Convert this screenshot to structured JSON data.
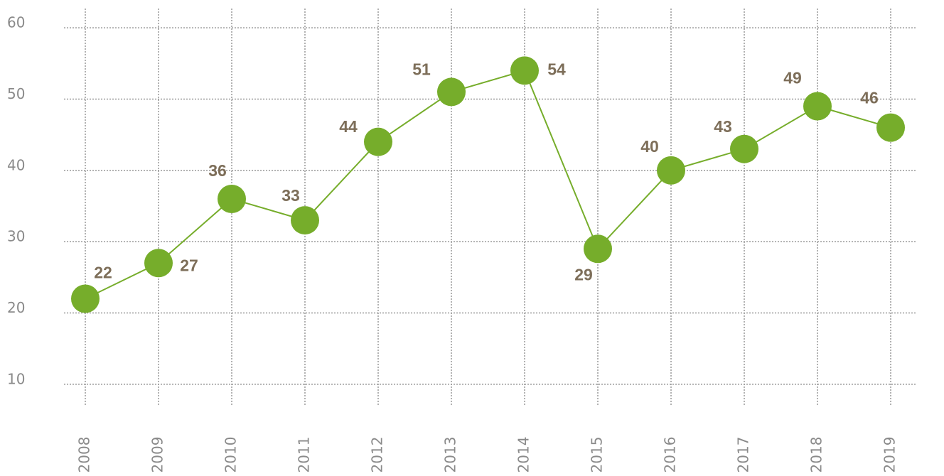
{
  "chart_data": {
    "type": "line",
    "categories": [
      "2008",
      "2009",
      "2010",
      "2011",
      "2012",
      "2013",
      "2014",
      "2015",
      "2016",
      "2017",
      "2018",
      "2019"
    ],
    "series": [
      {
        "color": "#76ad2b",
        "values": [
          22,
          27,
          36,
          33,
          44,
          51,
          54,
          29,
          40,
          43,
          49,
          46
        ]
      }
    ],
    "ylim": [
      7.1,
      62.7
    ],
    "yticks": [
      10,
      20,
      30,
      40,
      50,
      60
    ],
    "grid": true
  }
}
